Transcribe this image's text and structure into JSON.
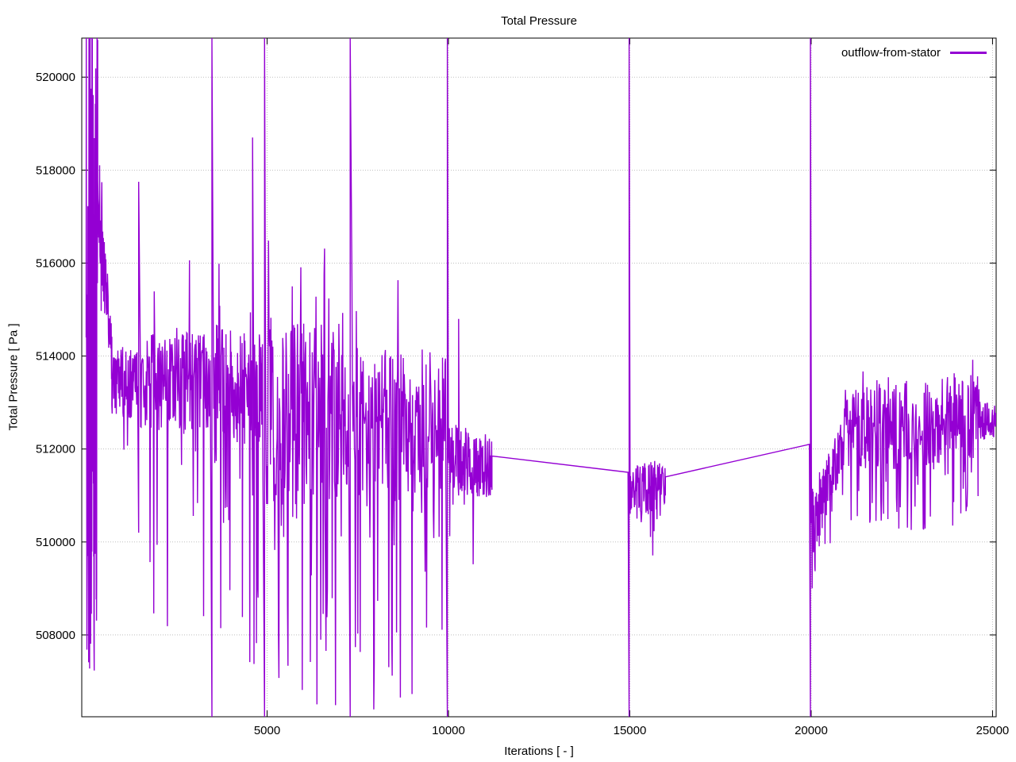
{
  "page": {
    "background": "#ffffff"
  },
  "chart_data": {
    "type": "line",
    "title": "Total Pressure",
    "xlabel": "Iterations [ - ]",
    "ylabel": "Total Pressure [ Pa ]",
    "xlim": [
      -110,
      25100
    ],
    "ylim": [
      506240,
      520840
    ],
    "xticks": [
      5000,
      10000,
      15000,
      20000,
      25000
    ],
    "yticks": [
      508000,
      510000,
      512000,
      514000,
      516000,
      518000,
      520000
    ],
    "grid": true,
    "grid_style": "dotted",
    "grid_color": "#bfbfbf",
    "border_color": "#000000",
    "legend_position": "top-right-inside",
    "series": [
      {
        "name": "outflow-from-stator",
        "color": "#9400d3",
        "line_width": 1.4,
        "segments": [
          {
            "type": "noise",
            "x0": 10,
            "x1": 330,
            "n": 70,
            "y0": 514000,
            "y1": 514000,
            "amp": 7300,
            "sp": 0.55,
            "sa": 7300,
            "sb": 0,
            "seed": 1
          },
          {
            "type": "noise",
            "x0": 330,
            "x1": 720,
            "n": 46,
            "y0": 517400,
            "y1": 513900,
            "amp": 800,
            "sp": 0.1,
            "sa": 1600,
            "sb": 0.1,
            "seed": 2
          },
          {
            "type": "noise",
            "x0": 720,
            "x1": 1430,
            "n": 82,
            "y0": 513400,
            "y1": 513400,
            "amp": 750,
            "sp": 0.12,
            "sa": 1600,
            "sb": 0.2,
            "seed": 3
          },
          {
            "type": "vspike",
            "x": 1460,
            "ya": 510200,
            "yb": 517750
          },
          {
            "type": "noise",
            "x0": 1500,
            "x1": 3430,
            "n": 150,
            "y0": 513400,
            "y1": 513400,
            "amp": 1100,
            "sp": 0.17,
            "sa": 4400,
            "sb": 0.35,
            "seed": 4
          },
          {
            "type": "vspike",
            "x": 3480,
            "ya": "min",
            "yb": "max"
          },
          {
            "type": "noise",
            "x0": 3520,
            "x1": 4570,
            "n": 110,
            "y0": 513400,
            "y1": 513350,
            "amp": 1300,
            "sp": 0.2,
            "sa": 4600,
            "sb": 0.3,
            "seed": 5
          },
          {
            "type": "vspike",
            "x": 4600,
            "ya": 511000,
            "yb": 518700
          },
          {
            "type": "noise",
            "x0": 4630,
            "x1": 4880,
            "n": 30,
            "y0": 513300,
            "y1": 513100,
            "amp": 1300,
            "sp": 0.2,
            "sa": 4600,
            "sb": 0.3,
            "seed": 13
          },
          {
            "type": "vspike",
            "x": 4930,
            "ya": "min",
            "yb": "max"
          },
          {
            "type": "noise",
            "x0": 4960,
            "x1": 7240,
            "n": 175,
            "y0": 512800,
            "y1": 512700,
            "amp": 2000,
            "sp": 0.22,
            "sa": 5300,
            "sb": 0.28,
            "seed": 6
          },
          {
            "type": "vspike",
            "x": 7290,
            "ya": "min",
            "yb": "max"
          },
          {
            "type": "noise",
            "x0": 7340,
            "x1": 9930,
            "n": 195,
            "y0": 512500,
            "y1": 512400,
            "amp": 1800,
            "sp": 0.2,
            "sa": 4700,
            "sb": 0.3,
            "seed": 7
          },
          {
            "type": "vspike",
            "x": 9970,
            "ya": "min",
            "yb": "max"
          },
          {
            "type": "noise",
            "x0": 10000,
            "x1": 10260,
            "n": 30,
            "y0": 511900,
            "y1": 511800,
            "amp": 700,
            "sp": 0.13,
            "sa": 1500,
            "sb": 0.5,
            "seed": 14
          },
          {
            "type": "vspike",
            "x": 10280,
            "ya": 511000,
            "yb": 514800
          },
          {
            "type": "noise",
            "x0": 10300,
            "x1": 11200,
            "n": 100,
            "y0": 511750,
            "y1": 511600,
            "amp": 700,
            "sp": 0.13,
            "sa": 1500,
            "sb": 0.5,
            "seed": 8
          },
          {
            "type": "line",
            "x0": 11200,
            "y0": 511850,
            "x1": 14950,
            "y1": 511500
          },
          {
            "type": "vspike",
            "x": 14980,
            "ya": "min",
            "yb": "max"
          },
          {
            "type": "noise",
            "x0": 15010,
            "x1": 15980,
            "n": 110,
            "y0": 511000,
            "y1": 511150,
            "amp": 650,
            "sp": 0.12,
            "sa": 1300,
            "sb": 0.4,
            "seed": 9
          },
          {
            "type": "line",
            "x0": 15980,
            "y0": 511400,
            "x1": 19950,
            "y1": 512100
          },
          {
            "type": "vspike",
            "x": 19980,
            "ya": "min",
            "yb": "max"
          },
          {
            "type": "noise",
            "x0": 20010,
            "x1": 20800,
            "n": 90,
            "y0": 510400,
            "y1": 511900,
            "amp": 700,
            "sp": 0.2,
            "sa": 1000,
            "sb": 0.5,
            "seed": 10
          },
          {
            "type": "noise",
            "x0": 20800,
            "x1": 24600,
            "n": 290,
            "y0": 512350,
            "y1": 512750,
            "amp": 950,
            "sp": 0.25,
            "sa": 1800,
            "sb": 0.3,
            "seed": 11
          },
          {
            "type": "noise",
            "x0": 24600,
            "x1": 25090,
            "n": 60,
            "y0": 512600,
            "y1": 512600,
            "amp": 420,
            "sp": 0.05,
            "sa": 800,
            "sb": 0,
            "seed": 12
          }
        ]
      }
    ]
  }
}
